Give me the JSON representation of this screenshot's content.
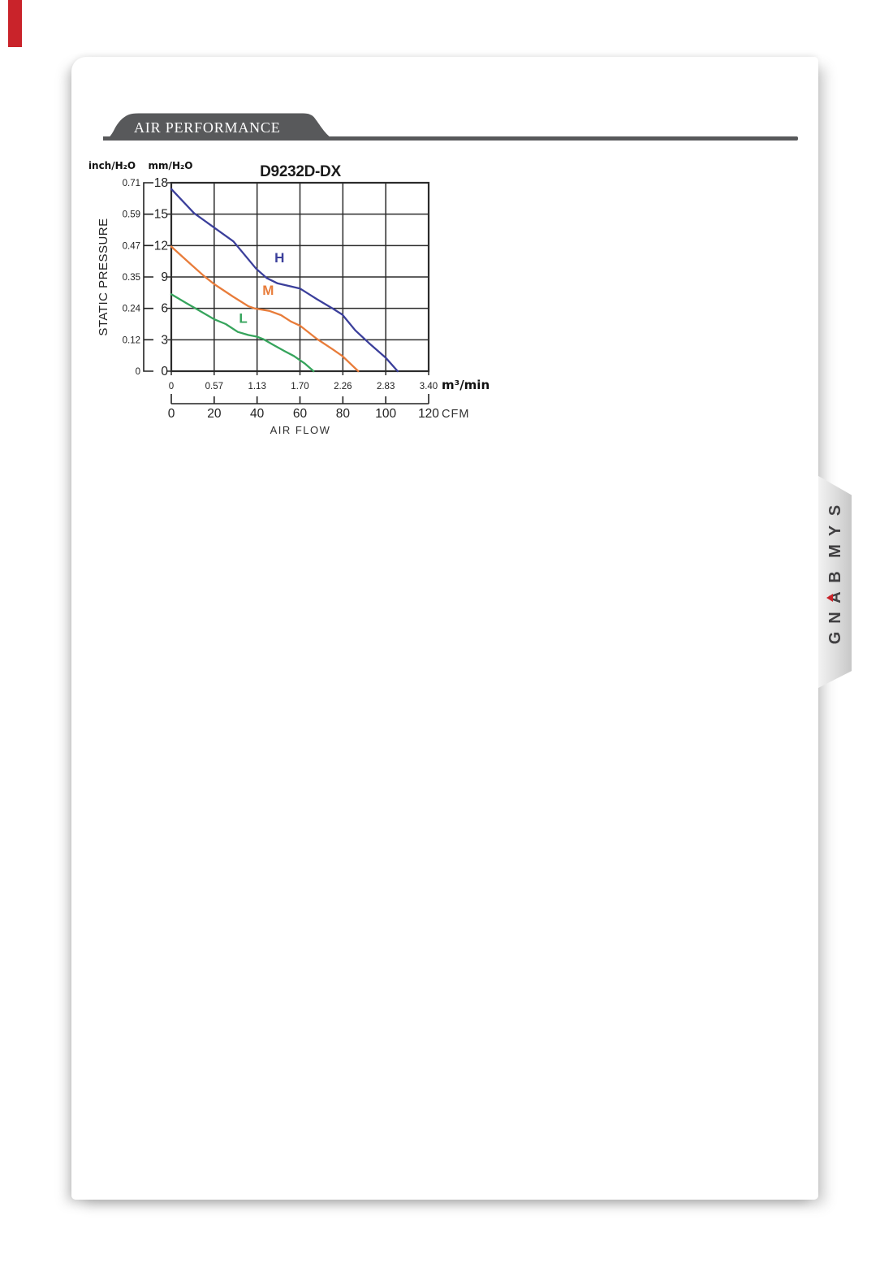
{
  "page": {
    "corner_mark_color": "#c9232a"
  },
  "header": {
    "title": "AIR PERFORMANCE",
    "banner_color": "#58595b"
  },
  "side_tab": {
    "brand": "SYMBANG",
    "accent_color": "#c9232a"
  },
  "chart_data": {
    "type": "line",
    "title": "D9232D-DX",
    "xlabel": "AIR FLOW",
    "ylabel": "STATIC PRESSURE",
    "grid": true,
    "x_axis_primary": {
      "unit": "m³/min",
      "range": [
        0,
        3.4
      ],
      "ticks": [
        "0",
        "0.57",
        "1.13",
        "1.70",
        "2.26",
        "2.83",
        "3.40"
      ]
    },
    "x_axis_secondary": {
      "unit": "CFM",
      "range": [
        0,
        120
      ],
      "ticks": [
        "0",
        "20",
        "40",
        "60",
        "80",
        "100",
        "120"
      ]
    },
    "y_axis_primary": {
      "unit": "mm/H₂O",
      "range": [
        0,
        18
      ],
      "ticks": [
        "18",
        "15",
        "12",
        "9",
        "6",
        "3",
        "0"
      ]
    },
    "y_axis_secondary": {
      "unit": "inch/H₂O",
      "ticks": [
        "0.71",
        "0.59",
        "0.47",
        "0.35",
        "0.24",
        "0.12",
        "0"
      ]
    },
    "series": [
      {
        "name": "H",
        "color": "#3b3f9b",
        "label_pos": [
          1.43,
          10.4
        ],
        "points": [
          [
            0,
            17.4
          ],
          [
            0.3,
            15.1
          ],
          [
            0.57,
            13.7
          ],
          [
            0.82,
            12.4
          ],
          [
            1.12,
            9.8
          ],
          [
            1.26,
            8.9
          ],
          [
            1.4,
            8.4
          ],
          [
            1.58,
            8.1
          ],
          [
            1.7,
            7.9
          ],
          [
            1.92,
            6.9
          ],
          [
            2.13,
            6.0
          ],
          [
            2.26,
            5.4
          ],
          [
            2.43,
            3.9
          ],
          [
            2.61,
            2.7
          ],
          [
            2.83,
            1.3
          ],
          [
            2.99,
            0
          ]
        ]
      },
      {
        "name": "M",
        "color": "#e87c3a",
        "label_pos": [
          1.28,
          7.3
        ],
        "points": [
          [
            0,
            11.9
          ],
          [
            0.23,
            10.4
          ],
          [
            0.43,
            9.1
          ],
          [
            0.57,
            8.3
          ],
          [
            0.82,
            7.1
          ],
          [
            1.02,
            6.2
          ],
          [
            1.1,
            6.0
          ],
          [
            1.3,
            5.75
          ],
          [
            1.45,
            5.35
          ],
          [
            1.58,
            4.75
          ],
          [
            1.7,
            4.35
          ],
          [
            1.92,
            3.1
          ],
          [
            2.13,
            2.1
          ],
          [
            2.26,
            1.45
          ],
          [
            2.47,
            0
          ]
        ]
      },
      {
        "name": "L",
        "color": "#36a45c",
        "label_pos": [
          0.95,
          4.6
        ],
        "points": [
          [
            0,
            7.35
          ],
          [
            0.2,
            6.5
          ],
          [
            0.39,
            5.7
          ],
          [
            0.57,
            4.95
          ],
          [
            0.72,
            4.5
          ],
          [
            0.88,
            3.75
          ],
          [
            1.02,
            3.45
          ],
          [
            1.13,
            3.3
          ],
          [
            1.22,
            3.05
          ],
          [
            1.35,
            2.5
          ],
          [
            1.5,
            1.9
          ],
          [
            1.62,
            1.45
          ],
          [
            1.76,
            0.75
          ],
          [
            1.88,
            0
          ]
        ]
      }
    ]
  }
}
